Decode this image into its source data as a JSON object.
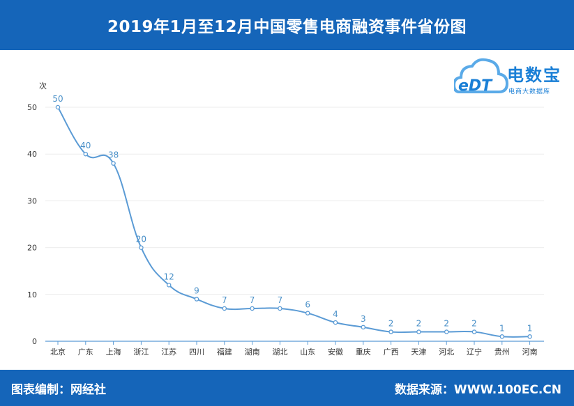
{
  "header": {
    "title": "2019年1月至12月中国零售电商融资事件省份图"
  },
  "footer": {
    "left": "图表编制：网经社",
    "right": "数据来源：WWW.100EC.CN"
  },
  "logo": {
    "name": "电数宝",
    "subtitle": "电商大数据库",
    "mark": "eDT"
  },
  "colors": {
    "header_bg": "#1565b9",
    "line": "#5b9bd5",
    "label": "#4a90c8"
  },
  "chart_data": {
    "type": "line",
    "title": "2019年1月至12月中国零售电商融资事件省份图",
    "ylabel": "次",
    "xlabel": "",
    "ylim": [
      0,
      50
    ],
    "yticks": [
      0,
      10,
      20,
      30,
      40,
      50
    ],
    "grid": true,
    "smooth": true,
    "categories": [
      "北京",
      "广东",
      "上海",
      "浙江",
      "江苏",
      "四川",
      "福建",
      "湖南",
      "湖北",
      "山东",
      "安徽",
      "重庆",
      "广西",
      "天津",
      "河北",
      "辽宁",
      "贵州",
      "河南"
    ],
    "series": [
      {
        "values": [
          50,
          40,
          38,
          20,
          12,
          9,
          7,
          7,
          7,
          6,
          4,
          3,
          2,
          2,
          2,
          2,
          1,
          1
        ]
      }
    ]
  }
}
